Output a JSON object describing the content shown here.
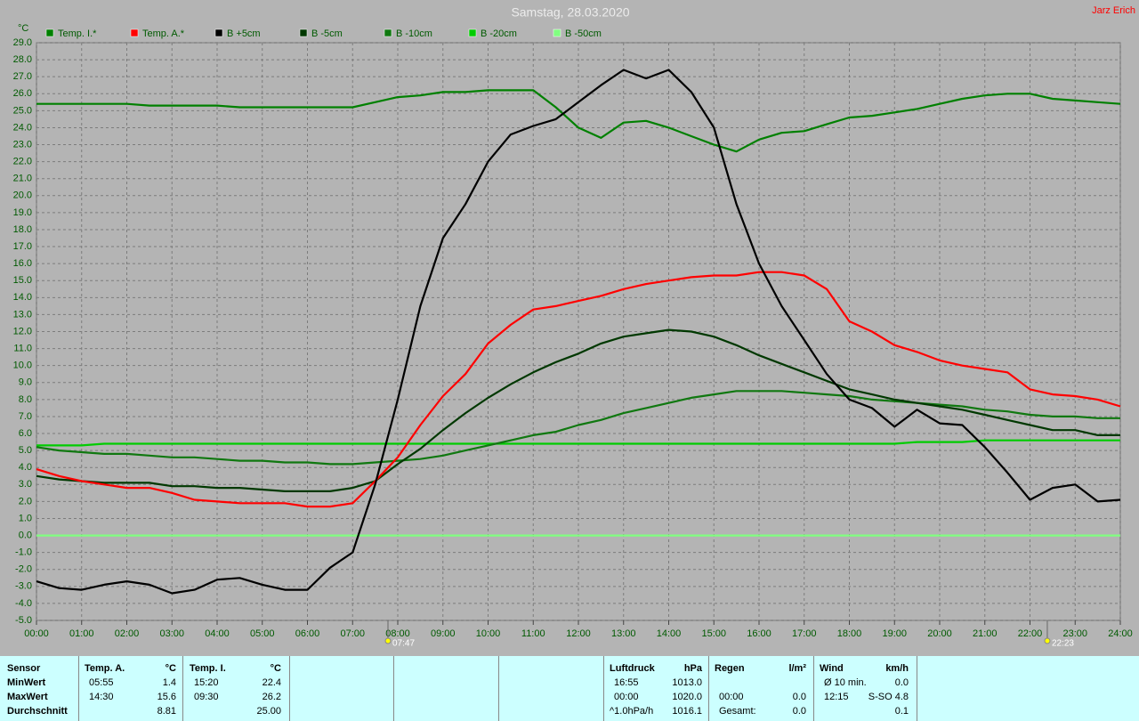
{
  "chart_data": {
    "type": "line",
    "title": "Samstag, 28.03.2020",
    "author": "Jarz Erich",
    "y_label": "°C",
    "xlim": [
      0,
      24
    ],
    "ylim": [
      -5,
      29
    ],
    "grid": true,
    "xticks": [
      {
        "value": 0,
        "label": "00:00"
      },
      {
        "value": 1,
        "label": "01:00"
      },
      {
        "value": 2,
        "label": "02:00"
      },
      {
        "value": 3,
        "label": "03:00"
      },
      {
        "value": 4,
        "label": "04:00"
      },
      {
        "value": 5,
        "label": "05:00"
      },
      {
        "value": 6,
        "label": "06:00"
      },
      {
        "value": 7,
        "label": "07:00"
      },
      {
        "value": 8,
        "label": "08:00"
      },
      {
        "value": 9,
        "label": "09:00"
      },
      {
        "value": 10,
        "label": "10:00"
      },
      {
        "value": 11,
        "label": "11:00"
      },
      {
        "value": 12,
        "label": "12:00"
      },
      {
        "value": 13,
        "label": "13:00"
      },
      {
        "value": 14,
        "label": "14:00"
      },
      {
        "value": 15,
        "label": "15:00"
      },
      {
        "value": 16,
        "label": "16:00"
      },
      {
        "value": 17,
        "label": "17:00"
      },
      {
        "value": 18,
        "label": "18:00"
      },
      {
        "value": 19,
        "label": "19:00"
      },
      {
        "value": 20,
        "label": "20:00"
      },
      {
        "value": 21,
        "label": "21:00"
      },
      {
        "value": 22,
        "label": "22:00"
      },
      {
        "value": 23,
        "label": "23:00"
      },
      {
        "value": 24,
        "label": "24:00"
      }
    ],
    "yticks": [
      {
        "value": 29,
        "label": "29.0"
      },
      {
        "value": 28,
        "label": "28.0"
      },
      {
        "value": 27,
        "label": "27.0"
      },
      {
        "value": 26,
        "label": "26.0"
      },
      {
        "value": 25,
        "label": "25.0"
      },
      {
        "value": 24,
        "label": "24.0"
      },
      {
        "value": 23,
        "label": "23.0"
      },
      {
        "value": 22,
        "label": "22.0"
      },
      {
        "value": 21,
        "label": "21.0"
      },
      {
        "value": 20,
        "label": "20.0"
      },
      {
        "value": 19,
        "label": "19.0"
      },
      {
        "value": 18,
        "label": "18.0"
      },
      {
        "value": 17,
        "label": "17.0"
      },
      {
        "value": 16,
        "label": "16.0"
      },
      {
        "value": 15,
        "label": "15.0"
      },
      {
        "value": 14,
        "label": "14.0"
      },
      {
        "value": 13,
        "label": "13.0"
      },
      {
        "value": 12,
        "label": "12.0"
      },
      {
        "value": 11,
        "label": "11.0"
      },
      {
        "value": 10,
        "label": "10.0"
      },
      {
        "value": 9,
        "label": "9.0"
      },
      {
        "value": 8,
        "label": "8.0"
      },
      {
        "value": 7,
        "label": "7.0"
      },
      {
        "value": 6,
        "label": "6.0"
      },
      {
        "value": 5,
        "label": "5.0"
      },
      {
        "value": 4,
        "label": "4.0"
      },
      {
        "value": 3,
        "label": "3.0"
      },
      {
        "value": 2,
        "label": "2.0"
      },
      {
        "value": 1,
        "label": "1.0"
      },
      {
        "value": 0,
        "label": "0.0"
      },
      {
        "value": -1,
        "label": "-1.0"
      },
      {
        "value": -2,
        "label": "-2.0"
      },
      {
        "value": -3,
        "label": "-3.0"
      },
      {
        "value": -4,
        "label": "-4.0"
      },
      {
        "value": -5,
        "label": "-5.0"
      }
    ],
    "annotations": [
      {
        "x": 7.7833,
        "label": "07:47"
      },
      {
        "x": 22.3833,
        "label": "22:23"
      }
    ],
    "x": [
      0,
      0.5,
      1,
      1.5,
      2,
      2.5,
      3,
      3.5,
      4,
      4.5,
      5,
      5.5,
      6,
      6.5,
      7,
      7.5,
      8,
      8.5,
      9,
      9.5,
      10,
      10.5,
      11,
      11.5,
      12,
      12.5,
      13,
      13.5,
      14,
      14.5,
      15,
      15.5,
      16,
      16.5,
      17,
      17.5,
      18,
      18.5,
      19,
      19.5,
      20,
      20.5,
      21,
      21.5,
      22,
      22.5,
      23,
      23.5,
      24
    ],
    "series": [
      {
        "name": "Temp. I.*",
        "color": "#008000",
        "values": [
          25.4,
          25.4,
          25.4,
          25.4,
          25.4,
          25.3,
          25.3,
          25.3,
          25.3,
          25.2,
          25.2,
          25.2,
          25.2,
          25.2,
          25.2,
          25.5,
          25.8,
          25.9,
          26.1,
          26.1,
          26.2,
          26.2,
          26.2,
          25.2,
          24.0,
          23.4,
          24.3,
          24.4,
          24.0,
          23.5,
          23.0,
          22.6,
          23.3,
          23.7,
          23.8,
          24.2,
          24.6,
          24.7,
          24.9,
          25.1,
          25.4,
          25.7,
          25.9,
          26.0,
          26.0,
          25.7,
          25.6,
          25.5,
          25.4
        ]
      },
      {
        "name": "Temp. A.*",
        "color": "#ff0000",
        "values": [
          3.9,
          3.5,
          3.2,
          3.0,
          2.8,
          2.8,
          2.5,
          2.1,
          2.0,
          1.9,
          1.9,
          1.9,
          1.7,
          1.7,
          1.9,
          3.2,
          4.6,
          6.5,
          8.2,
          9.5,
          11.3,
          12.4,
          13.3,
          13.5,
          13.8,
          14.1,
          14.5,
          14.8,
          15.0,
          15.2,
          15.3,
          15.3,
          15.5,
          15.5,
          15.3,
          14.5,
          12.6,
          12.0,
          11.2,
          10.8,
          10.3,
          10.0,
          9.8,
          9.6,
          8.6,
          8.3,
          8.2,
          8.0,
          7.6
        ]
      },
      {
        "name": "B +5cm",
        "color": "#000000",
        "values": [
          -2.7,
          -3.1,
          -3.2,
          -2.9,
          -2.7,
          -2.9,
          -3.4,
          -3.2,
          -2.6,
          -2.5,
          -2.9,
          -3.2,
          -3.2,
          -1.9,
          -1.0,
          3.0,
          8.0,
          13.5,
          17.5,
          19.5,
          22.0,
          23.6,
          24.1,
          24.5,
          25.5,
          26.5,
          27.4,
          26.9,
          27.4,
          26.1,
          24.0,
          19.5,
          16.0,
          13.5,
          11.5,
          9.5,
          8.0,
          7.5,
          6.4,
          7.4,
          6.6,
          6.5,
          5.2,
          3.7,
          2.1,
          2.8,
          3.0,
          2.0,
          2.1
        ]
      },
      {
        "name": "B -5cm",
        "color": "#003800",
        "values": [
          3.5,
          3.3,
          3.2,
          3.1,
          3.1,
          3.1,
          2.9,
          2.9,
          2.8,
          2.8,
          2.7,
          2.6,
          2.6,
          2.6,
          2.8,
          3.2,
          4.2,
          5.1,
          6.2,
          7.2,
          8.1,
          8.9,
          9.6,
          10.2,
          10.7,
          11.3,
          11.7,
          11.9,
          12.1,
          12.0,
          11.7,
          11.2,
          10.6,
          10.1,
          9.6,
          9.1,
          8.6,
          8.3,
          8.0,
          7.8,
          7.6,
          7.4,
          7.1,
          6.8,
          6.5,
          6.2,
          6.2,
          5.9,
          5.9
        ]
      },
      {
        "name": "B -10cm",
        "color": "#107810",
        "values": [
          5.2,
          5.0,
          4.9,
          4.8,
          4.8,
          4.7,
          4.6,
          4.6,
          4.5,
          4.4,
          4.4,
          4.3,
          4.3,
          4.2,
          4.2,
          4.3,
          4.4,
          4.5,
          4.7,
          5.0,
          5.3,
          5.6,
          5.9,
          6.1,
          6.5,
          6.8,
          7.2,
          7.5,
          7.8,
          8.1,
          8.3,
          8.5,
          8.5,
          8.5,
          8.4,
          8.3,
          8.2,
          8.0,
          7.9,
          7.8,
          7.7,
          7.6,
          7.4,
          7.3,
          7.1,
          7.0,
          7.0,
          6.9,
          6.9
        ]
      },
      {
        "name": "B -20cm",
        "color": "#00cc00",
        "values": [
          5.3,
          5.3,
          5.3,
          5.4,
          5.4,
          5.4,
          5.4,
          5.4,
          5.4,
          5.4,
          5.4,
          5.4,
          5.4,
          5.4,
          5.4,
          5.4,
          5.4,
          5.4,
          5.4,
          5.4,
          5.4,
          5.4,
          5.4,
          5.4,
          5.4,
          5.4,
          5.4,
          5.4,
          5.4,
          5.4,
          5.4,
          5.4,
          5.4,
          5.4,
          5.4,
          5.4,
          5.4,
          5.4,
          5.4,
          5.5,
          5.5,
          5.5,
          5.6,
          5.6,
          5.6,
          5.6,
          5.6,
          5.6,
          5.6
        ]
      },
      {
        "name": "B -50cm",
        "color": "#80ff80",
        "values": [
          0,
          0,
          0,
          0,
          0,
          0,
          0,
          0,
          0,
          0,
          0,
          0,
          0,
          0,
          0,
          0,
          0,
          0,
          0,
          0,
          0,
          0,
          0,
          0,
          0,
          0,
          0,
          0,
          0,
          0,
          0,
          0,
          0,
          0,
          0,
          0,
          0,
          0,
          0,
          0,
          0,
          0,
          0,
          0,
          0,
          0,
          0,
          0,
          0
        ]
      }
    ]
  },
  "stats": {
    "labels": {
      "title": "Sensor",
      "rows": [
        "MinWert",
        "MaxWert",
        "Durchschnitt"
      ]
    },
    "blocks": [
      {
        "title": "Temp. A.",
        "unit": "°C",
        "start": 0,
        "rows": [
          {
            "time": "05:55",
            "value": "1.4"
          },
          {
            "time": "14:30",
            "value": "15.6"
          },
          {
            "value": "8.81"
          }
        ]
      },
      {
        "title": "Temp. I.",
        "unit": "°C",
        "start": 0,
        "rows": [
          {
            "time": "15:20",
            "value": "22.4"
          },
          {
            "time": "09:30",
            "value": "26.2"
          },
          {
            "value": "25.00"
          }
        ]
      },
      {
        "title": "Luftdruck",
        "unit": "hPa",
        "start": 0,
        "rows": [
          {
            "time": "16:55",
            "value": "1013.0"
          },
          {
            "time": "00:00",
            "value": "1020.0"
          },
          {
            "time": "^1.0hPa/h",
            "value": "1016.1"
          }
        ]
      },
      {
        "title": "Regen",
        "unit": "l/m²",
        "start": 1,
        "rows": [
          {
            "time": "00:00",
            "value": "0.0"
          },
          {
            "time": "Gesamt:",
            "value": "0.0"
          }
        ]
      },
      {
        "title": "Wind",
        "unit": "km/h",
        "start": 0,
        "rows": [
          {
            "time": "Ø 10 min.",
            "value": "0.0"
          },
          {
            "time": "12:15",
            "value": "S-SO 4.8"
          },
          {
            "value": "0.1"
          }
        ]
      }
    ]
  }
}
